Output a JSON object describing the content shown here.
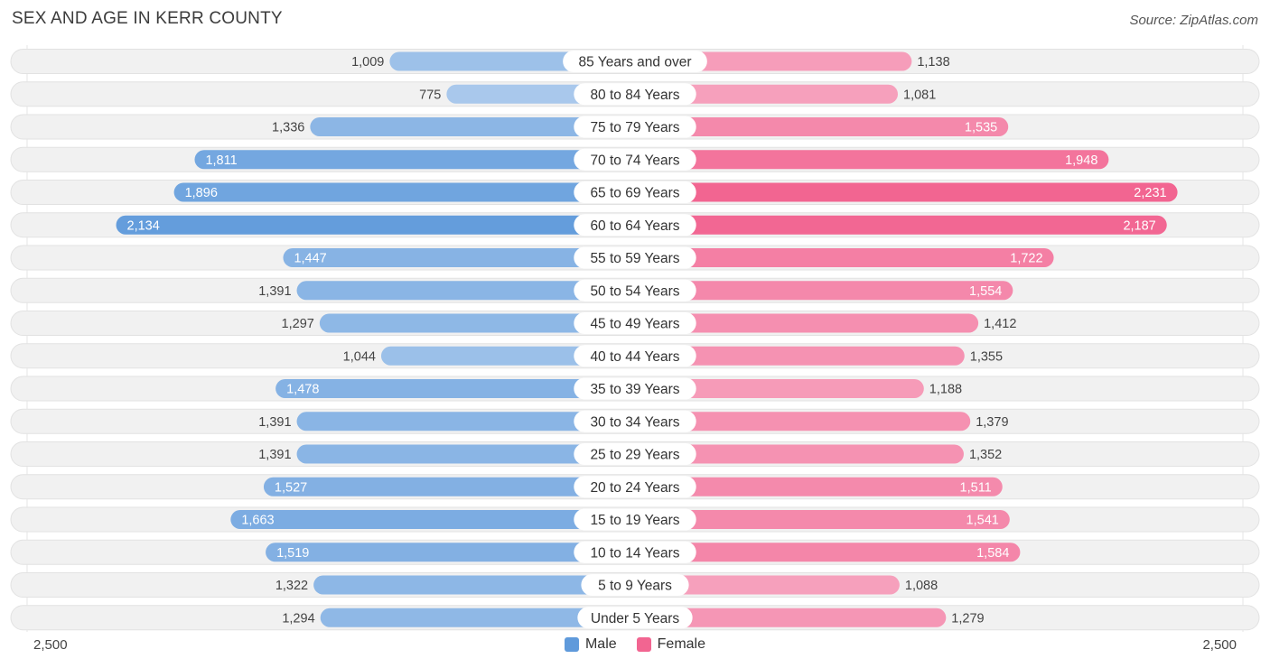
{
  "header": {
    "title": "SEX AND AGE IN KERR COUNTY",
    "source": "Source: ZipAtlas.com"
  },
  "axis": {
    "left_label": "2,500",
    "right_label": "2,500"
  },
  "legend": {
    "male_label": "Male",
    "female_label": "Female"
  },
  "colors": {
    "male_light": "#a9c8ec",
    "male_dark": "#5f9adb",
    "female_light": "#f7b0c8",
    "female_dark": "#f26591",
    "track": "#f1f1f1"
  },
  "chart_data": {
    "type": "bar",
    "title": "SEX AND AGE IN KERR COUNTY",
    "categories": [
      "85 Years and over",
      "80 to 84 Years",
      "75 to 79 Years",
      "70 to 74 Years",
      "65 to 69 Years",
      "60 to 64 Years",
      "55 to 59 Years",
      "50 to 54 Years",
      "45 to 49 Years",
      "40 to 44 Years",
      "35 to 39 Years",
      "30 to 34 Years",
      "25 to 29 Years",
      "20 to 24 Years",
      "15 to 19 Years",
      "10 to 14 Years",
      "5 to 9 Years",
      "Under 5 Years"
    ],
    "series": [
      {
        "name": "Male",
        "values": [
          1009,
          775,
          1336,
          1811,
          1896,
          2134,
          1447,
          1391,
          1297,
          1044,
          1478,
          1391,
          1391,
          1527,
          1663,
          1519,
          1322,
          1294
        ],
        "labels": [
          "1,009",
          "775",
          "1,336",
          "1,811",
          "1,896",
          "2,134",
          "1,447",
          "1,391",
          "1,297",
          "1,044",
          "1,478",
          "1,391",
          "1,391",
          "1,527",
          "1,663",
          "1,519",
          "1,322",
          "1,294"
        ]
      },
      {
        "name": "Female",
        "values": [
          1138,
          1081,
          1535,
          1948,
          2231,
          2187,
          1722,
          1554,
          1412,
          1355,
          1188,
          1379,
          1352,
          1511,
          1541,
          1584,
          1088,
          1279
        ],
        "labels": [
          "1,138",
          "1,081",
          "1,535",
          "1,948",
          "2,231",
          "2,187",
          "1,722",
          "1,554",
          "1,412",
          "1,355",
          "1,188",
          "1,379",
          "1,352",
          "1,511",
          "1,541",
          "1,584",
          "1,088",
          "1,279"
        ]
      }
    ],
    "xlim": [
      -2500,
      2500
    ],
    "legend_position": "bottom-center"
  }
}
